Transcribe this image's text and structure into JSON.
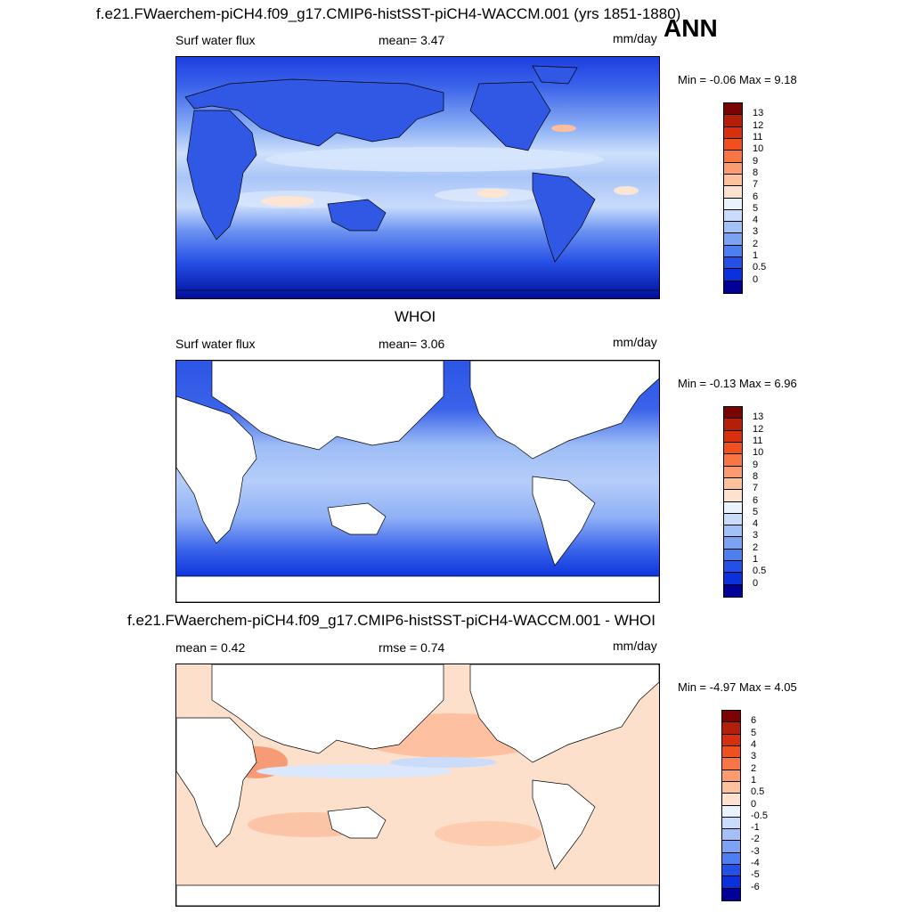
{
  "header": {
    "title": "f.e21.FWaerchem-piCH4.f09_g17.CMIP6-histSST-piCH4-WACCM.001 (yrs 1851-1880)",
    "season": "ANN"
  },
  "panels": [
    {
      "heading": "",
      "left_label": "Surf water flux",
      "center_label": "mean=   3.47",
      "units": "mm/day",
      "minmax": "Min =  -0.06 Max =   9.18",
      "colorbar": {
        "labels": [
          "13",
          "12",
          "11",
          "10",
          "9",
          "8",
          "7",
          "6",
          "5",
          "4",
          "3",
          "2",
          "1",
          "0.5",
          "0"
        ],
        "colors": [
          "#7a0403",
          "#b51f09",
          "#d8300e",
          "#f0501e",
          "#fa7544",
          "#fd9b70",
          "#fdc19e",
          "#fee2cf",
          "#eaf2fd",
          "#c9dcfb",
          "#a3c1f8",
          "#7ca3f3",
          "#4c7ff0",
          "#2351e8",
          "#0a32dc",
          "#000099"
        ]
      }
    },
    {
      "heading": "WHOI",
      "left_label": "Surf water flux",
      "center_label": "mean=   3.06",
      "units": "mm/day",
      "minmax": "Min =  -0.13 Max =   6.96",
      "colorbar": {
        "labels": [
          "13",
          "12",
          "11",
          "10",
          "9",
          "8",
          "7",
          "6",
          "5",
          "4",
          "3",
          "2",
          "1",
          "0.5",
          "0"
        ],
        "colors": [
          "#7a0403",
          "#b51f09",
          "#d8300e",
          "#f0501e",
          "#fa7544",
          "#fd9b70",
          "#fdc19e",
          "#fee2cf",
          "#eaf2fd",
          "#c9dcfb",
          "#a3c1f8",
          "#7ca3f3",
          "#4c7ff0",
          "#2351e8",
          "#0a32dc",
          "#000099"
        ]
      }
    },
    {
      "heading": "f.e21.FWaerchem-piCH4.f09_g17.CMIP6-histSST-piCH4-WACCM.001 - WHOI",
      "left_label": "mean =   0.42",
      "center_label": "rmse =   0.74",
      "units": "mm/day",
      "minmax": "Min =  -4.97 Max =   4.05",
      "colorbar": {
        "labels": [
          "6",
          "5",
          "4",
          "3",
          "2",
          "1",
          "0.5",
          "0",
          "-0.5",
          "-1",
          "-2",
          "-3",
          "-4",
          "-5",
          "-6"
        ],
        "colors": [
          "#7a0403",
          "#b51f09",
          "#d8300e",
          "#f0501e",
          "#fa7544",
          "#fd9b70",
          "#fdc19e",
          "#fee2cf",
          "#eaf2fd",
          "#c9dcfb",
          "#a3c1f8",
          "#7ca3f3",
          "#4c7ff0",
          "#2351e8",
          "#0a32dc",
          "#000099"
        ]
      }
    }
  ]
}
